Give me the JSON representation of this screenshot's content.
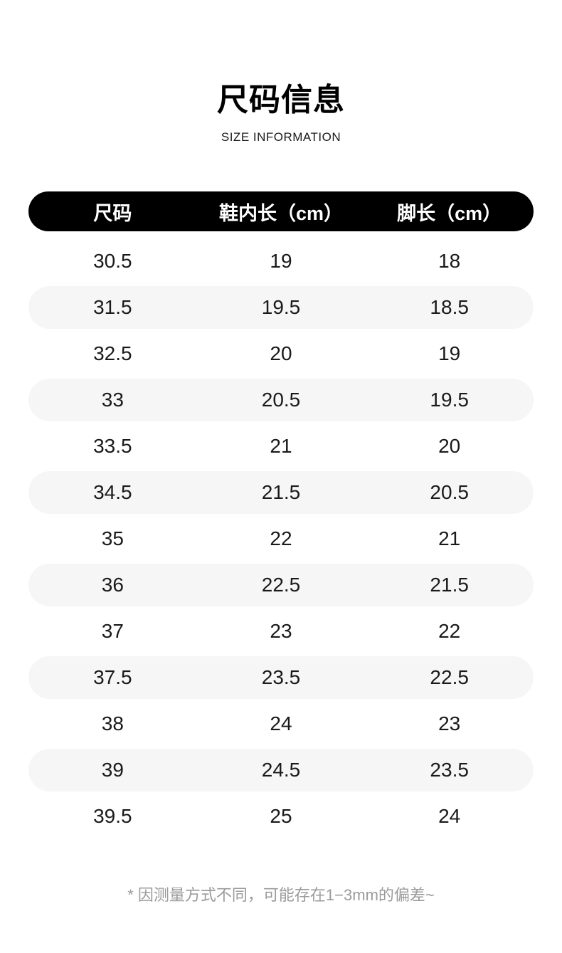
{
  "page": {
    "background": "#ffffff"
  },
  "header": {
    "title": "尺码信息",
    "subtitle": "SIZE INFORMATION"
  },
  "table": {
    "columns": [
      "尺码",
      "鞋内长（cm）",
      "脚长（cm）"
    ],
    "rows": [
      [
        "30.5",
        "19",
        "18"
      ],
      [
        "31.5",
        "19.5",
        "18.5"
      ],
      [
        "32.5",
        "20",
        "19"
      ],
      [
        "33",
        "20.5",
        "19.5"
      ],
      [
        "33.5",
        "21",
        "20"
      ],
      [
        "34.5",
        "21.5",
        "20.5"
      ],
      [
        "35",
        "22",
        "21"
      ],
      [
        "36",
        "22.5",
        "21.5"
      ],
      [
        "37",
        "23",
        "22"
      ],
      [
        "37.5",
        "23.5",
        "22.5"
      ],
      [
        "38",
        "24",
        "23"
      ],
      [
        "39",
        "24.5",
        "23.5"
      ],
      [
        "39.5",
        "25",
        "24"
      ]
    ],
    "colors": {
      "header_bg": "#000000",
      "header_text": "#ffffff",
      "stripe_bg": "#f6f6f6",
      "cell_text": "#1a1a1a"
    }
  },
  "footnote": {
    "text": "* 因测量方式不同，可能存在1−3mm的偏差~",
    "color": "#9b9b9b"
  }
}
